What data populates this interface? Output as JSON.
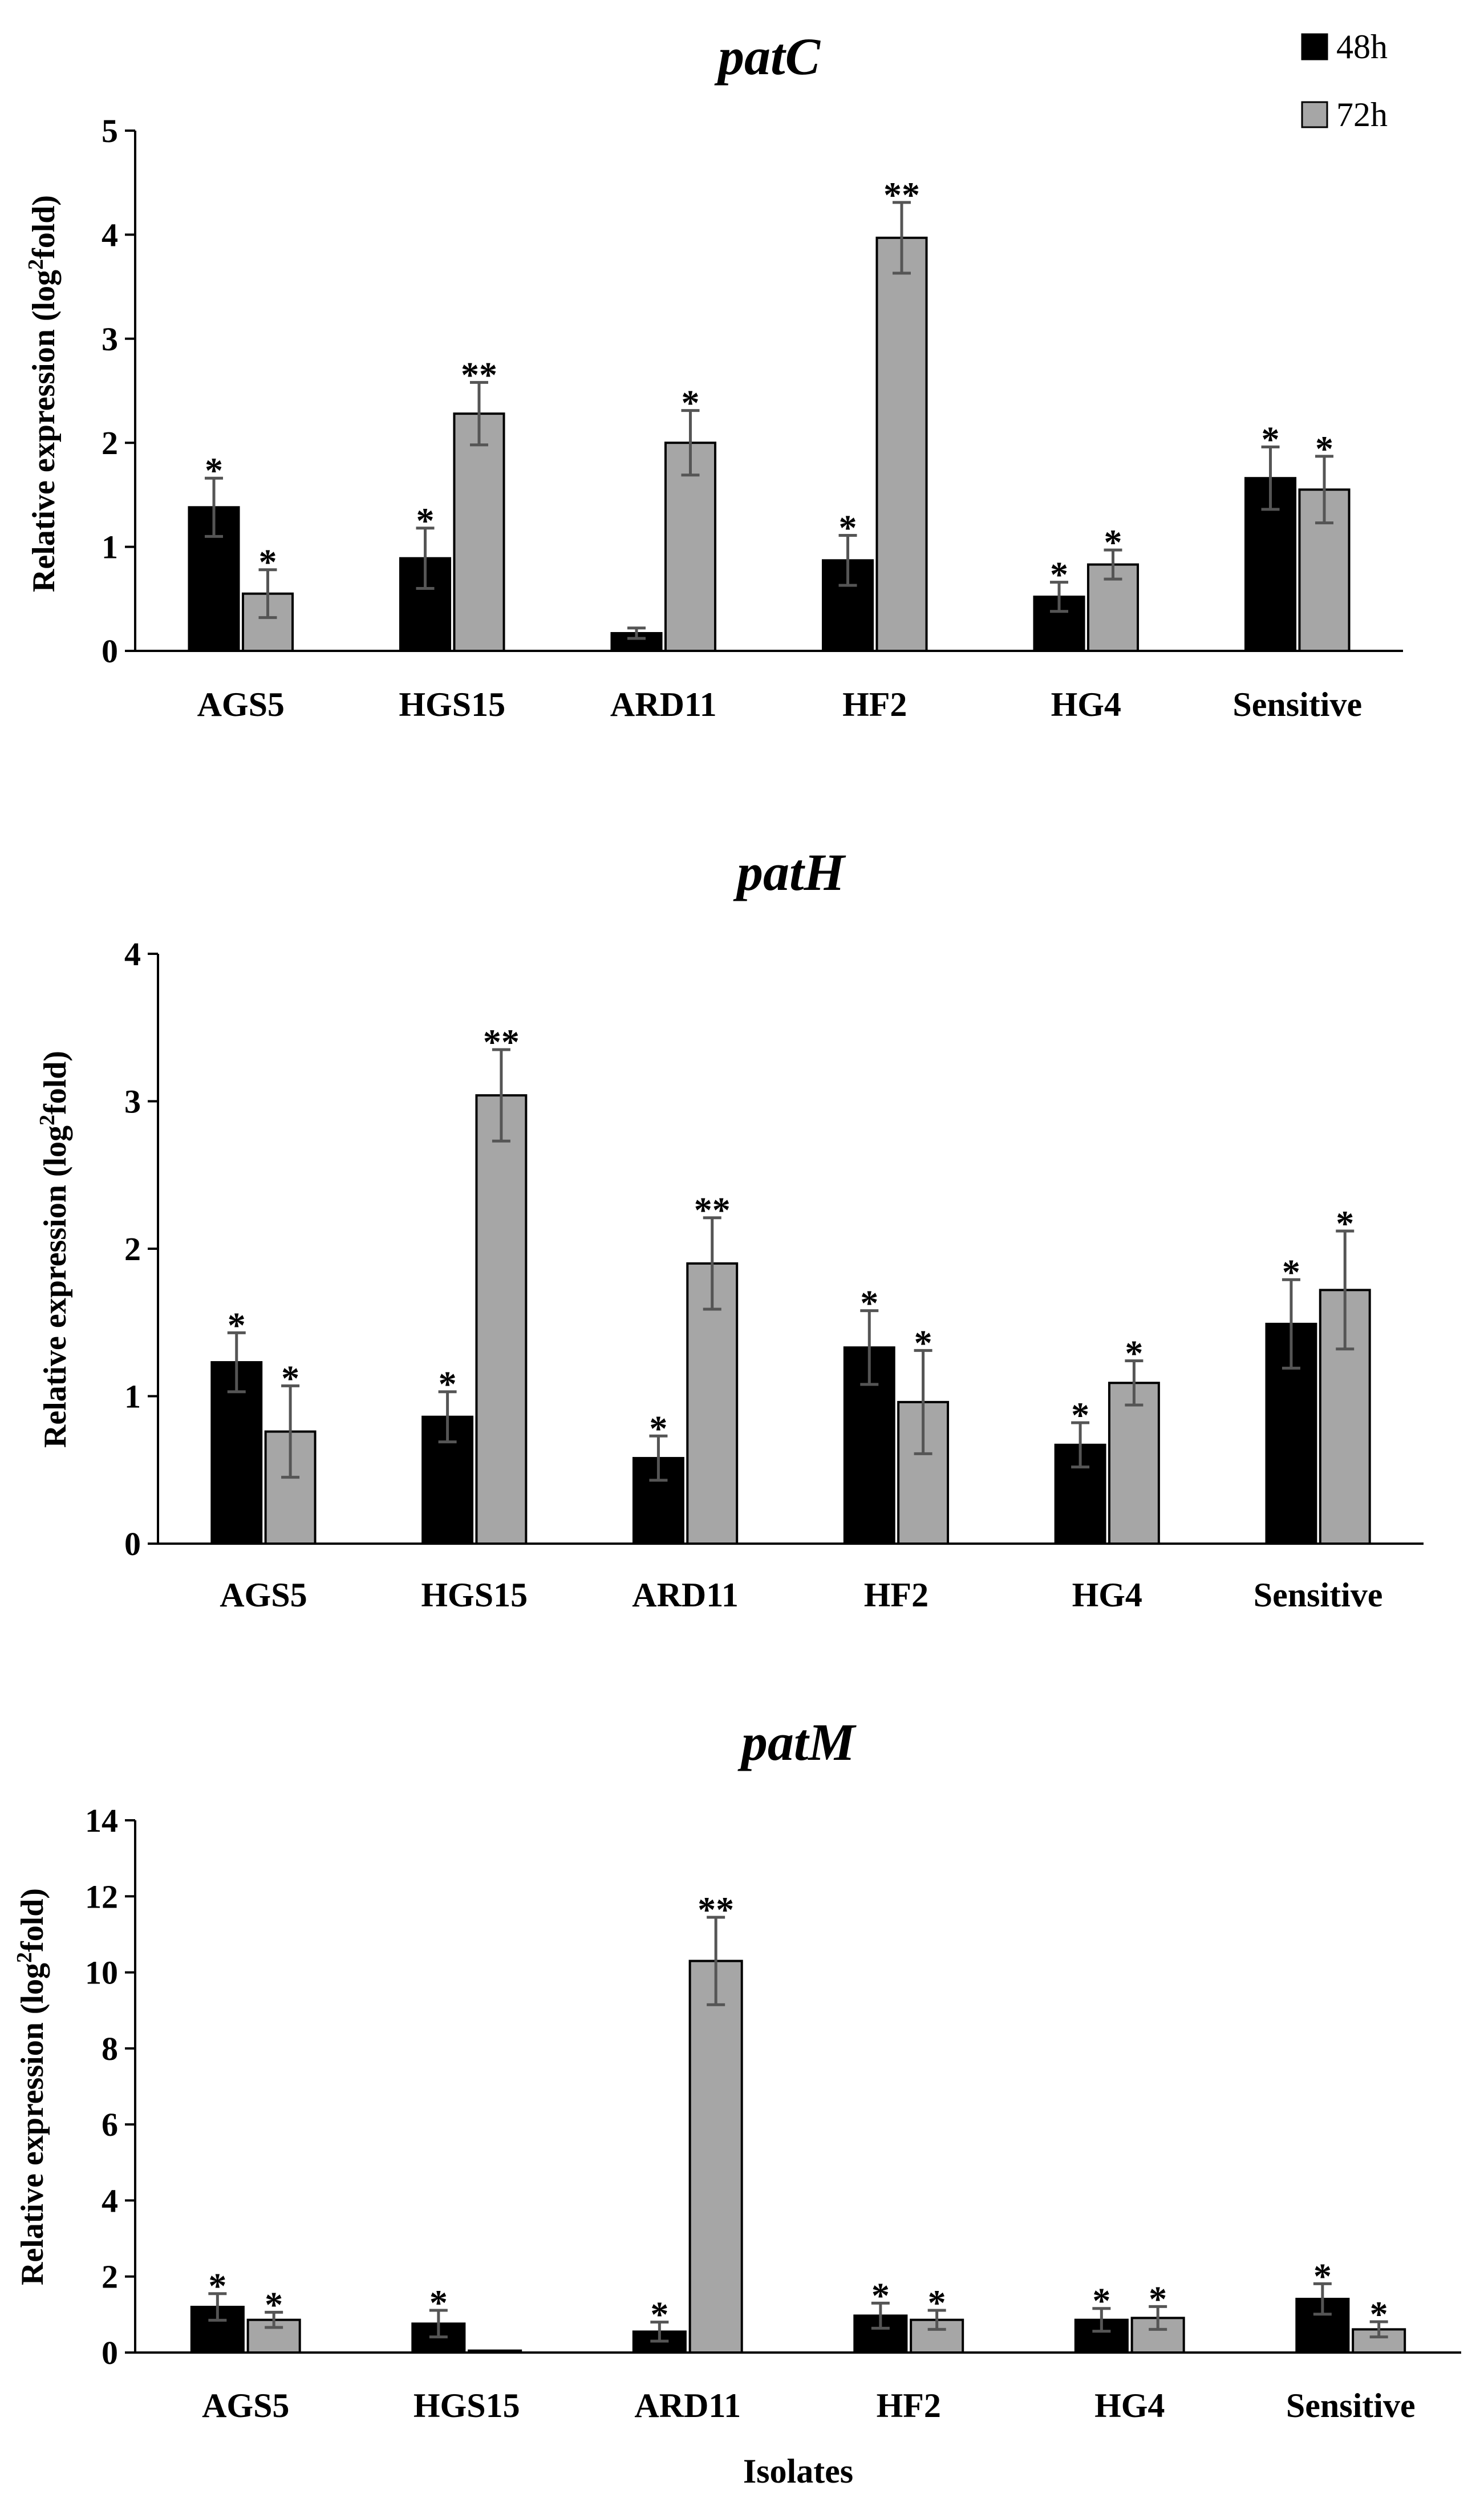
{
  "legend": [
    {
      "label": "48h",
      "color": "#000000"
    },
    {
      "label": "72h",
      "color": "#a6a6a6"
    }
  ],
  "chart_data": [
    {
      "type": "bar",
      "title": "patC",
      "ylabel": "Relative expression (log2fold)",
      "xlabel": "",
      "ylim": [
        0,
        5
      ],
      "yticks": [
        0,
        1,
        2,
        3,
        4,
        5
      ],
      "categories": [
        "AGS5",
        "HGS15",
        "ARD11",
        "HF2",
        "HG4",
        "Sensitive"
      ],
      "series": [
        {
          "name": "48h",
          "color": "#000000",
          "values": [
            1.38,
            0.89,
            0.17,
            0.87,
            0.52,
            1.66
          ],
          "errors": [
            0.28,
            0.29,
            0.05,
            0.24,
            0.14,
            0.3
          ],
          "labels": [
            "*",
            "*",
            "",
            "*",
            "*",
            "*"
          ]
        },
        {
          "name": "72h",
          "color": "#a6a6a6",
          "values": [
            0.55,
            2.28,
            2.0,
            3.97,
            0.83,
            1.55
          ],
          "errors": [
            0.23,
            0.3,
            0.31,
            0.34,
            0.14,
            0.32
          ],
          "labels": [
            "*",
            "**",
            "*",
            "**",
            "*",
            "*"
          ]
        }
      ]
    },
    {
      "type": "bar",
      "title": "patH",
      "ylabel": "Relative expression (log2fold)",
      "xlabel": "",
      "ylim": [
        0,
        4
      ],
      "yticks": [
        0,
        1,
        2,
        3,
        4
      ],
      "categories": [
        "AGS5",
        "HGS15",
        "ARD11",
        "HF2",
        "HG4",
        "Sensitive"
      ],
      "series": [
        {
          "name": "48h",
          "color": "#000000",
          "values": [
            1.23,
            0.86,
            0.58,
            1.33,
            0.67,
            1.49
          ],
          "errors": [
            0.2,
            0.17,
            0.15,
            0.25,
            0.15,
            0.3
          ],
          "labels": [
            "*",
            "*",
            "*",
            "*",
            "*",
            "*"
          ]
        },
        {
          "name": "72h",
          "color": "#a6a6a6",
          "values": [
            0.76,
            3.04,
            1.9,
            0.96,
            1.09,
            1.72
          ],
          "errors": [
            0.31,
            0.31,
            0.31,
            0.35,
            0.15,
            0.4
          ],
          "labels": [
            "*",
            "**",
            "**",
            "*",
            "*",
            "*"
          ]
        }
      ]
    },
    {
      "type": "bar",
      "title": "patM",
      "ylabel": "Relative expression (log2fold)",
      "xlabel": "Isolates",
      "ylim": [
        0,
        14
      ],
      "yticks": [
        0,
        2,
        4,
        6,
        8,
        10,
        12,
        14
      ],
      "categories": [
        "AGS5",
        "HGS15",
        "ARD11",
        "HF2",
        "HG4",
        "Sensitive"
      ],
      "series": [
        {
          "name": "48h",
          "color": "#000000",
          "values": [
            1.2,
            0.76,
            0.55,
            0.97,
            0.86,
            1.41
          ],
          "errors": [
            0.35,
            0.35,
            0.25,
            0.33,
            0.3,
            0.4
          ],
          "labels": [
            "*",
            "*",
            "*",
            "*",
            "*",
            "*"
          ]
        },
        {
          "name": "72h",
          "color": "#a6a6a6",
          "values": [
            0.86,
            0.05,
            10.3,
            0.86,
            0.91,
            0.61
          ],
          "errors": [
            0.2,
            0.0,
            1.15,
            0.25,
            0.3,
            0.2
          ],
          "labels": [
            "*",
            "",
            "**",
            "*",
            "*",
            "*"
          ]
        }
      ]
    }
  ]
}
